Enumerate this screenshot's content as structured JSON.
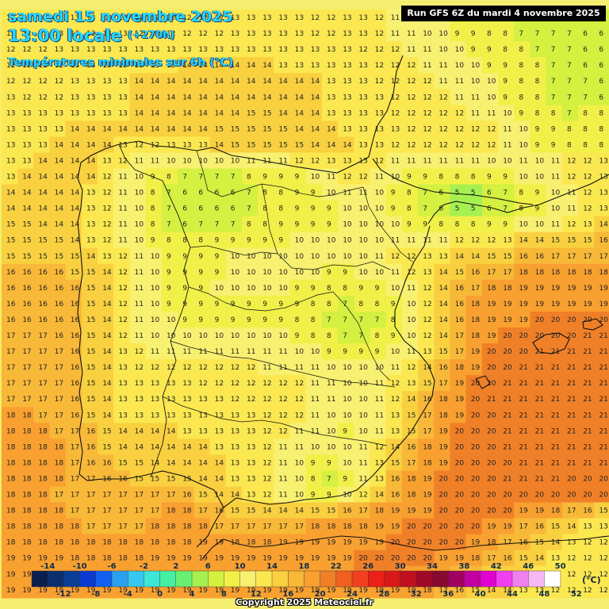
{
  "header": {
    "date": "samedi 15 novembre 2025",
    "time": "13:00 locale",
    "lead": "(+270h)",
    "parameter": "Températures minimales sur 6h (°C)"
  },
  "run_info": "Run GFS 6Z du mardi 4 novembre 2025",
  "copyright": "Copyright 2025 Meteociel.fr",
  "legend": {
    "unit": "(°C)",
    "top_labels": [
      "-14",
      "-10",
      "-6",
      "-2",
      "2",
      "6",
      "10",
      "14",
      "18",
      "22",
      "26",
      "30",
      "34",
      "38",
      "42",
      "46",
      "50"
    ],
    "bottom_labels": [
      "-12",
      "-8",
      "-4",
      "0",
      "4",
      "8",
      "12",
      "16",
      "20",
      "24",
      "28",
      "32",
      "36",
      "40",
      "44",
      "48",
      "52"
    ],
    "colors": [
      "#0a1f4d",
      "#0b2f6e",
      "#0b3e95",
      "#0a3bd0",
      "#1260f0",
      "#2aa0f0",
      "#36c8f0",
      "#3ee6d8",
      "#46f0a0",
      "#6af070",
      "#a6f050",
      "#d4f040",
      "#f0f048",
      "#f8f070",
      "#fbe850",
      "#f9d040",
      "#f8b838",
      "#f8a030",
      "#f08028",
      "#f06020",
      "#f04020",
      "#ec2018",
      "#d81818",
      "#c01020",
      "#a00828",
      "#880830",
      "#a00060",
      "#c000a0",
      "#e000d0",
      "#f040f0",
      "#f080f0",
      "#f8b8f8",
      "#ffffff"
    ]
  },
  "map": {
    "cols": 38,
    "rows": 37,
    "grid": [
      "12 13 13 13 13 13 12 12 12 12 12 12 12 12 13 13 13 13 13 12 12 13 13 12 11 11 10 10 9 9 8 8 7 7 7 7 6 6",
      "12 12 13 13 13 13 13 13 12 12 12 12 12 12 13 13 13 13 13 12 12 13 13 12 11 11 10 10 9 9 8 8 7 7 7 7 6 6",
      "12 12 12 13 13 13 13 13 13 13 13 13 13 13 13 13 13 13 13 13 13 13 12 12 12 11 11 10 10 9 9 8 8 7 7 7 6 6",
      "12 12 12 12 13 13 13 13 13 13 13 14 14 14 14 14 14 13 13 13 13 13 13 12 12 12 11 11 10 10 9 9 8 8 7 7 6 6",
      "12 12 12 12 13 13 13 13 14 14 14 14 14 14 14 14 14 14 14 14 13 13 13 12 12 12 12 11 11 10 10 9 8 8 7 7 7 6",
      "13 12 12 12 13 13 13 13 14 14 14 14 14 14 14 14 14 14 14 14 13 13 13 13 12 12 12 12 11 11 10 9 8 8 7 7 7 6",
      "13 13 13 13 13 13 13 13 14 14 14 14 14 14 14 15 15 14 14 14 13 13 13 13 12 12 12 12 12 11 11 10 9 8 8 7 8 8",
      "13 13 13 13 14 14 14 14 14 14 14 14 14 15 15 15 15 15 14 14 14 13 13 13 13 12 12 12 12 12 12 11 10 9 9 8 8 8",
      "13 13 13 14 14 14 14 13 12 12 13 13 13 14 15 15 15 15 15 14 14 14 13 13 12 12 12 12 12 12 12 11 10 9 9 8 8 8",
      "13 13 14 14 14 14 13 12 11 11 10 10 10 10 10 11 11 11 12 12 13 13 13 12 11 11 11 11 11 11 10 10 11 10 11 12 12 13",
      "13 14 14 14 14 14 12 11 10 9 8 7 7 7 7 8 9 9 9 10 11 12 12 11 10 9 9 8 8 8 9 9 10 10 11 12 12 13",
      "14 14 14 14 14 13 12 11 10 8 7 6 6 6 6 7 8 8 9 9 10 11 11 10 9 8 7 6 5 5 6 7 8 9 10 11 12 13",
      "14 14 14 14 14 13 12 11 10 8 7 6 6 6 6 7 8 8 9 9 9 10 10 10 9 8 7 6 5 5 6 7 8 9 10 11 12 13",
      "15 15 14 14 14 13 12 11 10 8 7 6 7 7 7 8 8 9 9 9 9 10 10 10 10 9 9 8 8 8 9 9 10 10 11 12 13 14",
      "15 15 15 15 14 13 12 11 10 9 8 8 8 9 9 9 9 9 10 10 10 10 10 10 11 11 11 11 12 12 12 13 14 14 15 15 15 16",
      "15 15 15 15 15 14 13 12 11 10 9 9 9 9 10 10 10 10 10 10 10 10 10 11 12 12 13 13 14 14 15 15 16 16 17 17 17 17",
      "16 16 16 16 15 15 14 12 11 10 9 9 9 9 10 10 10 10 10 10 9 9 10 10 11 12 13 14 15 16 17 17 18 18 18 18 18 18",
      "16 16 16 16 16 15 14 12 11 10 9 9 9 10 10 10 10 10 9 9 8 8 9 9 10 11 12 14 16 17 18 18 19 19 19 19 19 19",
      "16 16 16 16 16 15 14 12 11 10 9 9 9 9 9 9 9 9 9 8 8 7 8 8 9 10 12 14 16 18 19 19 19 19 19 19 19 19",
      "16 16 16 16 16 15 14 12 11 10 10 9 9 9 9 9 9 9 8 8 7 7 7 7 8 10 12 14 16 18 19 19 19 20 20 20 20 20",
      "17 17 17 16 16 15 14 12 11 10 10 10 10 10 10 10 10 10 9 8 8 7 7 8 9 10 12 14 17 18 19 20 20 20 20 20 21 21",
      "17 17 17 17 16 15 14 13 12 11 11 11 11 11 11 11 11 11 10 10 9 9 9 9 10 11 13 15 17 19 20 20 20 21 21 21 21 21",
      "17 17 17 17 16 15 14 13 12 12 12 12 12 12 12 12 11 11 11 11 10 10 10 10 11 12 14 16 18 19 20 20 21 21 21 21 21 21",
      "17 17 17 17 16 15 14 13 13 13 13 13 12 12 12 12 12 12 12 11 11 10 10 11 12 13 15 17 19 20 20 21 21 21 21 21 21 21",
      "17 17 17 17 16 15 14 13 13 13 13 13 13 13 12 12 12 12 12 11 11 10 10 11 12 14 16 18 19 20 21 21 21 21 21 21 21 21",
      "18 18 17 17 16 15 14 13 13 13 13 13 13 13 13 13 12 12 12 11 10 10 10 11 13 15 17 18 19 20 20 21 21 21 21 21 21 21",
      "18 18 18 17 17 16 15 14 14 14 14 13 13 13 13 13 12 12 11 11 10 9 10 11 13 15 17 19 20 20 20 21 21 21 21 21 21 21",
      "18 18 18 18 17 16 15 14 14 14 14 14 14 13 13 13 12 11 11 10 10 10 11 12 14 16 18 19 20 20 20 21 21 21 21 21 21 21",
      "18 18 18 18 17 16 16 15 15 14 14 14 14 14 13 13 12 11 10 9 9 10 11 13 15 17 18 19 20 20 20 20 21 21 21 21 21 21",
      "18 18 18 18 17 17 16 16 15 15 15 15 14 14 13 13 12 11 10 8 7 9 11 13 16 18 19 20 20 20 20 21 21 21 21 20 20 20",
      "18 18 18 17 17 17 17 17 17 17 17 16 15 14 14 13 12 11 10 9 9 10 12 14 16 18 19 20 20 20 20 20 20 20 20 20 20 20",
      "18 18 18 18 17 17 17 17 17 17 18 18 17 16 15 15 14 14 14 15 15 16 17 18 19 19 19 20 20 20 20 20 19 19 18 17 16 15",
      "18 18 18 18 18 17 17 17 17 18 18 18 18 17 17 17 17 17 17 18 18 18 18 19 19 20 20 20 20 20 19 19 17 16 15 14 13 13",
      "18 18 18 18 18 18 18 18 18 18 18 18 19 19 18 18 18 19 19 19 19 19 19 19 20 20 20 20 20 19 18 17 16 15 14 13 12 12",
      "19 19 19 19 18 18 18 18 18 19 19 19 19 19 19 19 19 19 19 19 19 19 20 20 20 20 20 19 19 18 17 16 15 14 13 12 12 12",
      "19 19 19 19 19 19 18 18 18 19 19 19 19 19 19 19 19 19 19 19 19 19 20 20 20 19 19 18 17 16 15 14 14 13 13 12 12 12",
      "19 19 19 19 19 19 19 19 19 19 19 19 19 19 19 19 19 19 19 19 19 19 19 19 19 19 18 17 16 15 14 14 13 13 12 12 12 12"
    ]
  }
}
